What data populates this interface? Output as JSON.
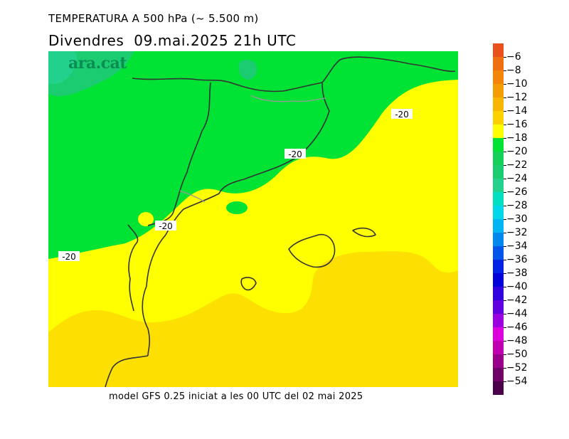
{
  "header": {
    "title": "TEMPERATURA A 500 hPa (~ 5.500 m)",
    "subtitle": "Divendres  09.mai.2025 21h UTC"
  },
  "footer": {
    "text": "model GFS 0.25 iniciat a les 00 UTC del 02 mai 2025"
  },
  "logo": {
    "text": "ara.cat"
  },
  "contour_label": "-20",
  "colorbar": {
    "levels": [
      "-6",
      "-8",
      "-10",
      "-12",
      "-14",
      "-16",
      "-18",
      "-20",
      "-22",
      "-24",
      "-26",
      "-28",
      "-30",
      "-32",
      "-34",
      "-36",
      "-38",
      "-40",
      "-42",
      "-44",
      "-46",
      "-48",
      "-50",
      "-52",
      "-54"
    ],
    "colors": [
      "#e8501c",
      "#ef6e10",
      "#f3860a",
      "#f49c04",
      "#f8b600",
      "#fbd100",
      "#ffff00",
      "#00e234",
      "#16d05a",
      "#1ccc70",
      "#22d18c",
      "#00e0c0",
      "#00d8ea",
      "#00b6f2",
      "#0088ee",
      "#0055ea",
      "#0022e4",
      "#0000d8",
      "#3000de",
      "#6000e0",
      "#9a00e0",
      "#dd00dd",
      "#c000b0",
      "#98008a",
      "#700068",
      "#4a0048"
    ]
  },
  "map_colors": {
    "band_minus16": "#fde001",
    "band_minus18": "#ffff00",
    "band_minus20": "#00e234",
    "band_minus26": "#1ccc70",
    "band_minus28": "#22d18c"
  }
}
